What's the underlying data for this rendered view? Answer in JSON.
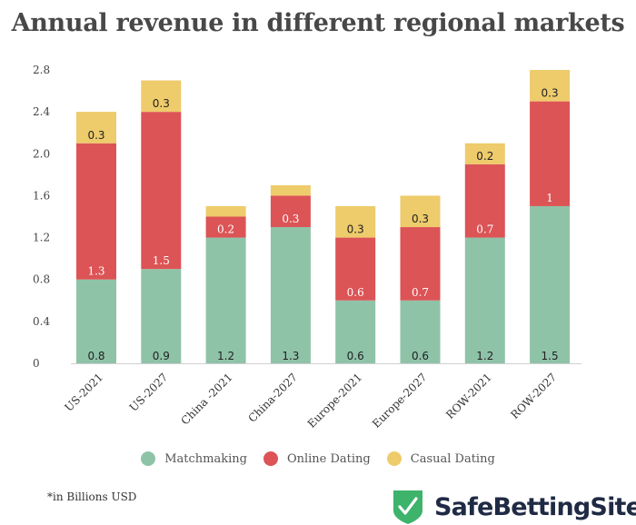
{
  "chart_data": {
    "type": "bar",
    "stacked": true,
    "title": "Annual revenue in different regional markets",
    "xlabel": "",
    "ylabel": "",
    "ylim": [
      0,
      2.8
    ],
    "yticks": [
      0,
      0.4,
      0.8,
      1.2,
      1.6,
      2.0,
      2.4,
      2.8
    ],
    "ytick_labels": [
      "0",
      "0.4",
      "0.8",
      "1.2",
      "1.6",
      "2.0",
      "2.4",
      "2.8"
    ],
    "grid": false,
    "legend_position": "bottom",
    "categories": [
      "US-2021",
      "US-2027",
      "China -2021",
      "China-2027",
      "Europe-2021",
      "Europe-2027",
      "ROW-2021",
      "ROW-2027"
    ],
    "series": [
      {
        "name": "Matchmaking",
        "color": "#8fc3a8",
        "label_style": "dark",
        "values": [
          0.8,
          0.9,
          1.2,
          1.3,
          0.6,
          0.6,
          1.2,
          1.5
        ],
        "labels": [
          "0.8",
          "0.9",
          "1.2",
          "1.3",
          "0.6",
          "0.6",
          "1.2",
          "1.5"
        ]
      },
      {
        "name": "Online Dating",
        "color": "#dc5456",
        "label_style": "light",
        "values": [
          1.3,
          1.5,
          0.2,
          0.3,
          0.6,
          0.7,
          0.7,
          1.0
        ],
        "labels": [
          "1.3",
          "1.5",
          "0.2",
          "0.3",
          "0.6",
          "0.7",
          "0.7",
          "1"
        ]
      },
      {
        "name": "Casual Dating",
        "color": "#eecb6b",
        "label_style": "dark",
        "values": [
          0.3,
          0.3,
          0.1,
          0.1,
          0.3,
          0.3,
          0.2,
          0.3
        ],
        "labels": [
          "0.3",
          "0.3",
          "",
          "",
          "0.3",
          "0.3",
          "0.2",
          "0.3"
        ]
      }
    ]
  },
  "legend": {
    "items": [
      {
        "label": "Matchmaking",
        "color": "#8fc3a8"
      },
      {
        "label": "Online Dating",
        "color": "#dc5456"
      },
      {
        "label": "Casual Dating",
        "color": "#eecb6b"
      }
    ]
  },
  "footnote": "*in Billions USD",
  "brand": {
    "name": "SafeBettingSites",
    "shield_color": "#3db36b",
    "icon": "shield-check-icon"
  }
}
